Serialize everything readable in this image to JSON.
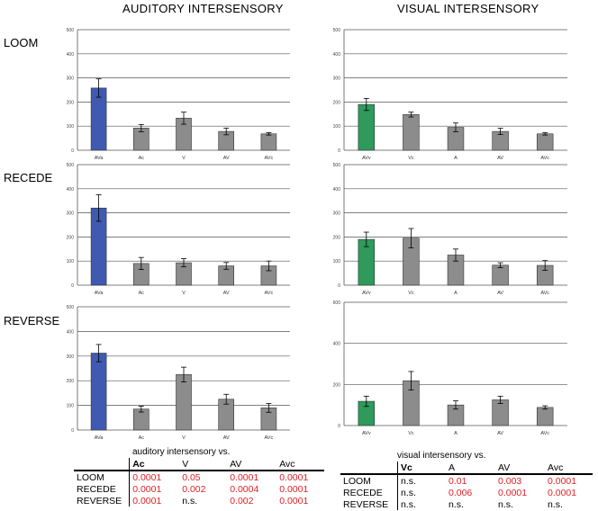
{
  "titles": {
    "auditory": "AUDITORY INTERSENSORY",
    "visual": "VISUAL INTERSENSORY"
  },
  "row_labels": [
    "LOOM",
    "RECEDE",
    "REVERSE"
  ],
  "colors": {
    "auditory_accent": "#3f5ab0",
    "visual_accent": "#2e9a5b",
    "other_bar": "#8c8c8c",
    "significant_text": "#e01f26"
  },
  "chart_data": [
    {
      "id": "aud-loom",
      "type": "bar",
      "ylim": [
        0,
        500
      ],
      "yticks": [
        "0",
        "100",
        "200",
        "300",
        "400",
        "500"
      ],
      "categories": [
        "AVa",
        "Ac",
        "V",
        "AV",
        "AVc"
      ],
      "values": [
        258,
        92,
        133,
        78,
        68
      ],
      "errors": [
        38,
        15,
        25,
        14,
        5
      ],
      "accent_index": 0,
      "accent": "auditory"
    },
    {
      "id": "vis-loom",
      "type": "bar",
      "ylim": [
        0,
        500
      ],
      "yticks": [
        "0",
        "100",
        "200",
        "300",
        "400",
        "500"
      ],
      "categories": [
        "AVv",
        "Vc",
        "A",
        "AV",
        "AVc"
      ],
      "values": [
        190,
        148,
        95,
        78,
        68
      ],
      "errors": [
        25,
        10,
        18,
        13,
        5
      ],
      "accent_index": 0,
      "accent": "visual"
    },
    {
      "id": "aud-recede",
      "type": "bar",
      "ylim": [
        0,
        500
      ],
      "yticks": [
        "0",
        "100",
        "200",
        "300",
        "400",
        "500"
      ],
      "categories": [
        "AVa",
        "Ac",
        "V",
        "AV",
        "AVc"
      ],
      "values": [
        320,
        90,
        93,
        80,
        80
      ],
      "errors": [
        55,
        25,
        17,
        14,
        20
      ],
      "accent_index": 0,
      "accent": "auditory"
    },
    {
      "id": "vis-recede",
      "type": "bar",
      "ylim": [
        0,
        500
      ],
      "yticks": [
        "0",
        "100",
        "200",
        "300",
        "400",
        "500"
      ],
      "categories": [
        "AVv",
        "Vc",
        "A",
        "AV",
        "AVc"
      ],
      "values": [
        190,
        195,
        125,
        83,
        82
      ],
      "errors": [
        30,
        40,
        25,
        10,
        20
      ],
      "accent_index": 0,
      "accent": "visual"
    },
    {
      "id": "aud-reverse",
      "type": "bar",
      "ylim": [
        0,
        500
      ],
      "yticks": [
        "0",
        "100",
        "200",
        "300",
        "400",
        "500"
      ],
      "categories": [
        "AVa",
        "Ac",
        "V",
        "AV",
        "AVc"
      ],
      "values": [
        312,
        85,
        225,
        125,
        90
      ],
      "errors": [
        35,
        12,
        30,
        20,
        18
      ],
      "accent_index": 0,
      "accent": "auditory"
    },
    {
      "id": "vis-reverse",
      "type": "bar",
      "ylim": [
        0,
        600
      ],
      "yticks": [
        "0",
        "200",
        "400",
        "600"
      ],
      "categories": [
        "AVv",
        "Vc",
        "A",
        "AV",
        "AVc"
      ],
      "values": [
        118,
        218,
        100,
        125,
        88
      ],
      "errors": [
        25,
        45,
        20,
        18,
        8
      ],
      "accent_index": 0,
      "accent": "visual"
    }
  ],
  "tables": {
    "auditory": {
      "caption": "auditory intersensory vs.",
      "columns": [
        "Ac",
        "V",
        "AV",
        "Avc"
      ],
      "rows": [
        {
          "label": "LOOM",
          "cells": [
            "0.0001",
            "0.05",
            "0.0001",
            "0.0001"
          ]
        },
        {
          "label": "RECEDE",
          "cells": [
            "0.0001",
            "0.002",
            "0.0004",
            "0.0001"
          ]
        },
        {
          "label": "REVERSE",
          "cells": [
            "0.0001",
            "n.s.",
            "0.002",
            "0.0001"
          ]
        }
      ]
    },
    "visual": {
      "caption": "visual intersensory vs.",
      "columns": [
        "Vc",
        "A",
        "AV",
        "Avc"
      ],
      "rows": [
        {
          "label": "LOOM",
          "cells": [
            "n.s.",
            "0.01",
            "0.003",
            "0.0001"
          ]
        },
        {
          "label": "RECEDE",
          "cells": [
            "n.s.",
            "0.006",
            "0.0001",
            "0.0001"
          ]
        },
        {
          "label": "REVERSE",
          "cells": [
            "n.s.",
            "n.s.",
            "n.s.",
            "n.s."
          ]
        }
      ]
    }
  }
}
